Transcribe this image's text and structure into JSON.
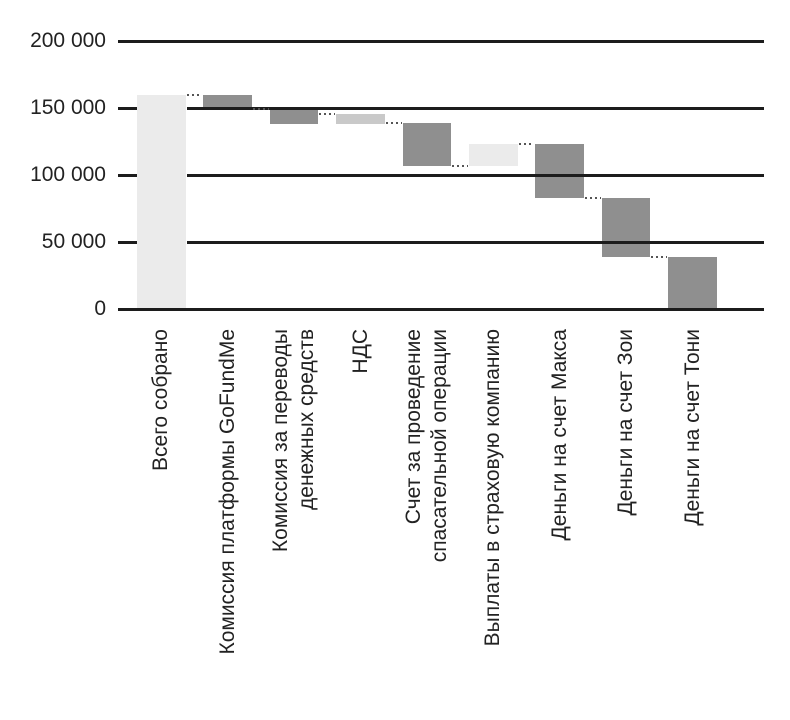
{
  "chart_data": {
    "type": "bar",
    "subtype": "waterfall",
    "title": "",
    "xlabel": "",
    "ylabel": "",
    "grid": "horizontal",
    "legend": "none",
    "y_axis": {
      "min": 0,
      "max": 200000,
      "ticks": [
        {
          "label": "200 000",
          "value": 200000
        },
        {
          "label": "150 000",
          "value": 150000
        },
        {
          "label": "100 000",
          "value": 100000
        },
        {
          "label": "50 000",
          "value": 50000
        },
        {
          "label": "0",
          "value": 0
        }
      ]
    },
    "bars": [
      {
        "name": "total-raised",
        "label_lines": [
          "Всего собрано"
        ],
        "from": 0,
        "to": 160000,
        "style": "total"
      },
      {
        "name": "gofundme-fee",
        "label_lines": [
          "Комиссия платформы GoFundMe"
        ],
        "from": 160000,
        "to": 149000,
        "style": "negative"
      },
      {
        "name": "transfer-fee",
        "label_lines": [
          "Комиссия за переводы",
          "денежных средств"
        ],
        "from": 149000,
        "to": 138000,
        "style": "negative"
      },
      {
        "name": "vat",
        "label_lines": [
          "НДС"
        ],
        "from": 145500,
        "to": 138000,
        "style": "light"
      },
      {
        "name": "rescue-bill",
        "label_lines": [
          "Счет за проведение",
          "спасательной операции"
        ],
        "from": 139000,
        "to": 107000,
        "style": "negative"
      },
      {
        "name": "insurance",
        "label_lines": [
          "Выплаты в страховую компанию"
        ],
        "from": 123500,
        "to": 107000,
        "style": "lighter"
      },
      {
        "name": "money-to-max",
        "label_lines": [
          "Деньги на счет Макса"
        ],
        "from": 123500,
        "to": 83000,
        "style": "negative"
      },
      {
        "name": "money-to-zoya",
        "label_lines": [
          "Деньги на счет Зои"
        ],
        "from": 83000,
        "to": 39000,
        "style": "negative"
      },
      {
        "name": "money-to-tony",
        "label_lines": [
          "Деньги на счет Тони"
        ],
        "from": 39000,
        "to": 0,
        "style": "negative"
      }
    ],
    "connector_levels": [
      160000,
      149000,
      145500,
      139000,
      107000,
      123500,
      83000,
      39000
    ],
    "colors": {
      "total": "#ebebeb",
      "negative": "#8f8f8f",
      "light": "#c9c9c9",
      "lighter": "#ebebeb",
      "gridline": "#1c1c1c",
      "connector": "#555555",
      "text": "#222222",
      "background": "#ffffff"
    }
  }
}
